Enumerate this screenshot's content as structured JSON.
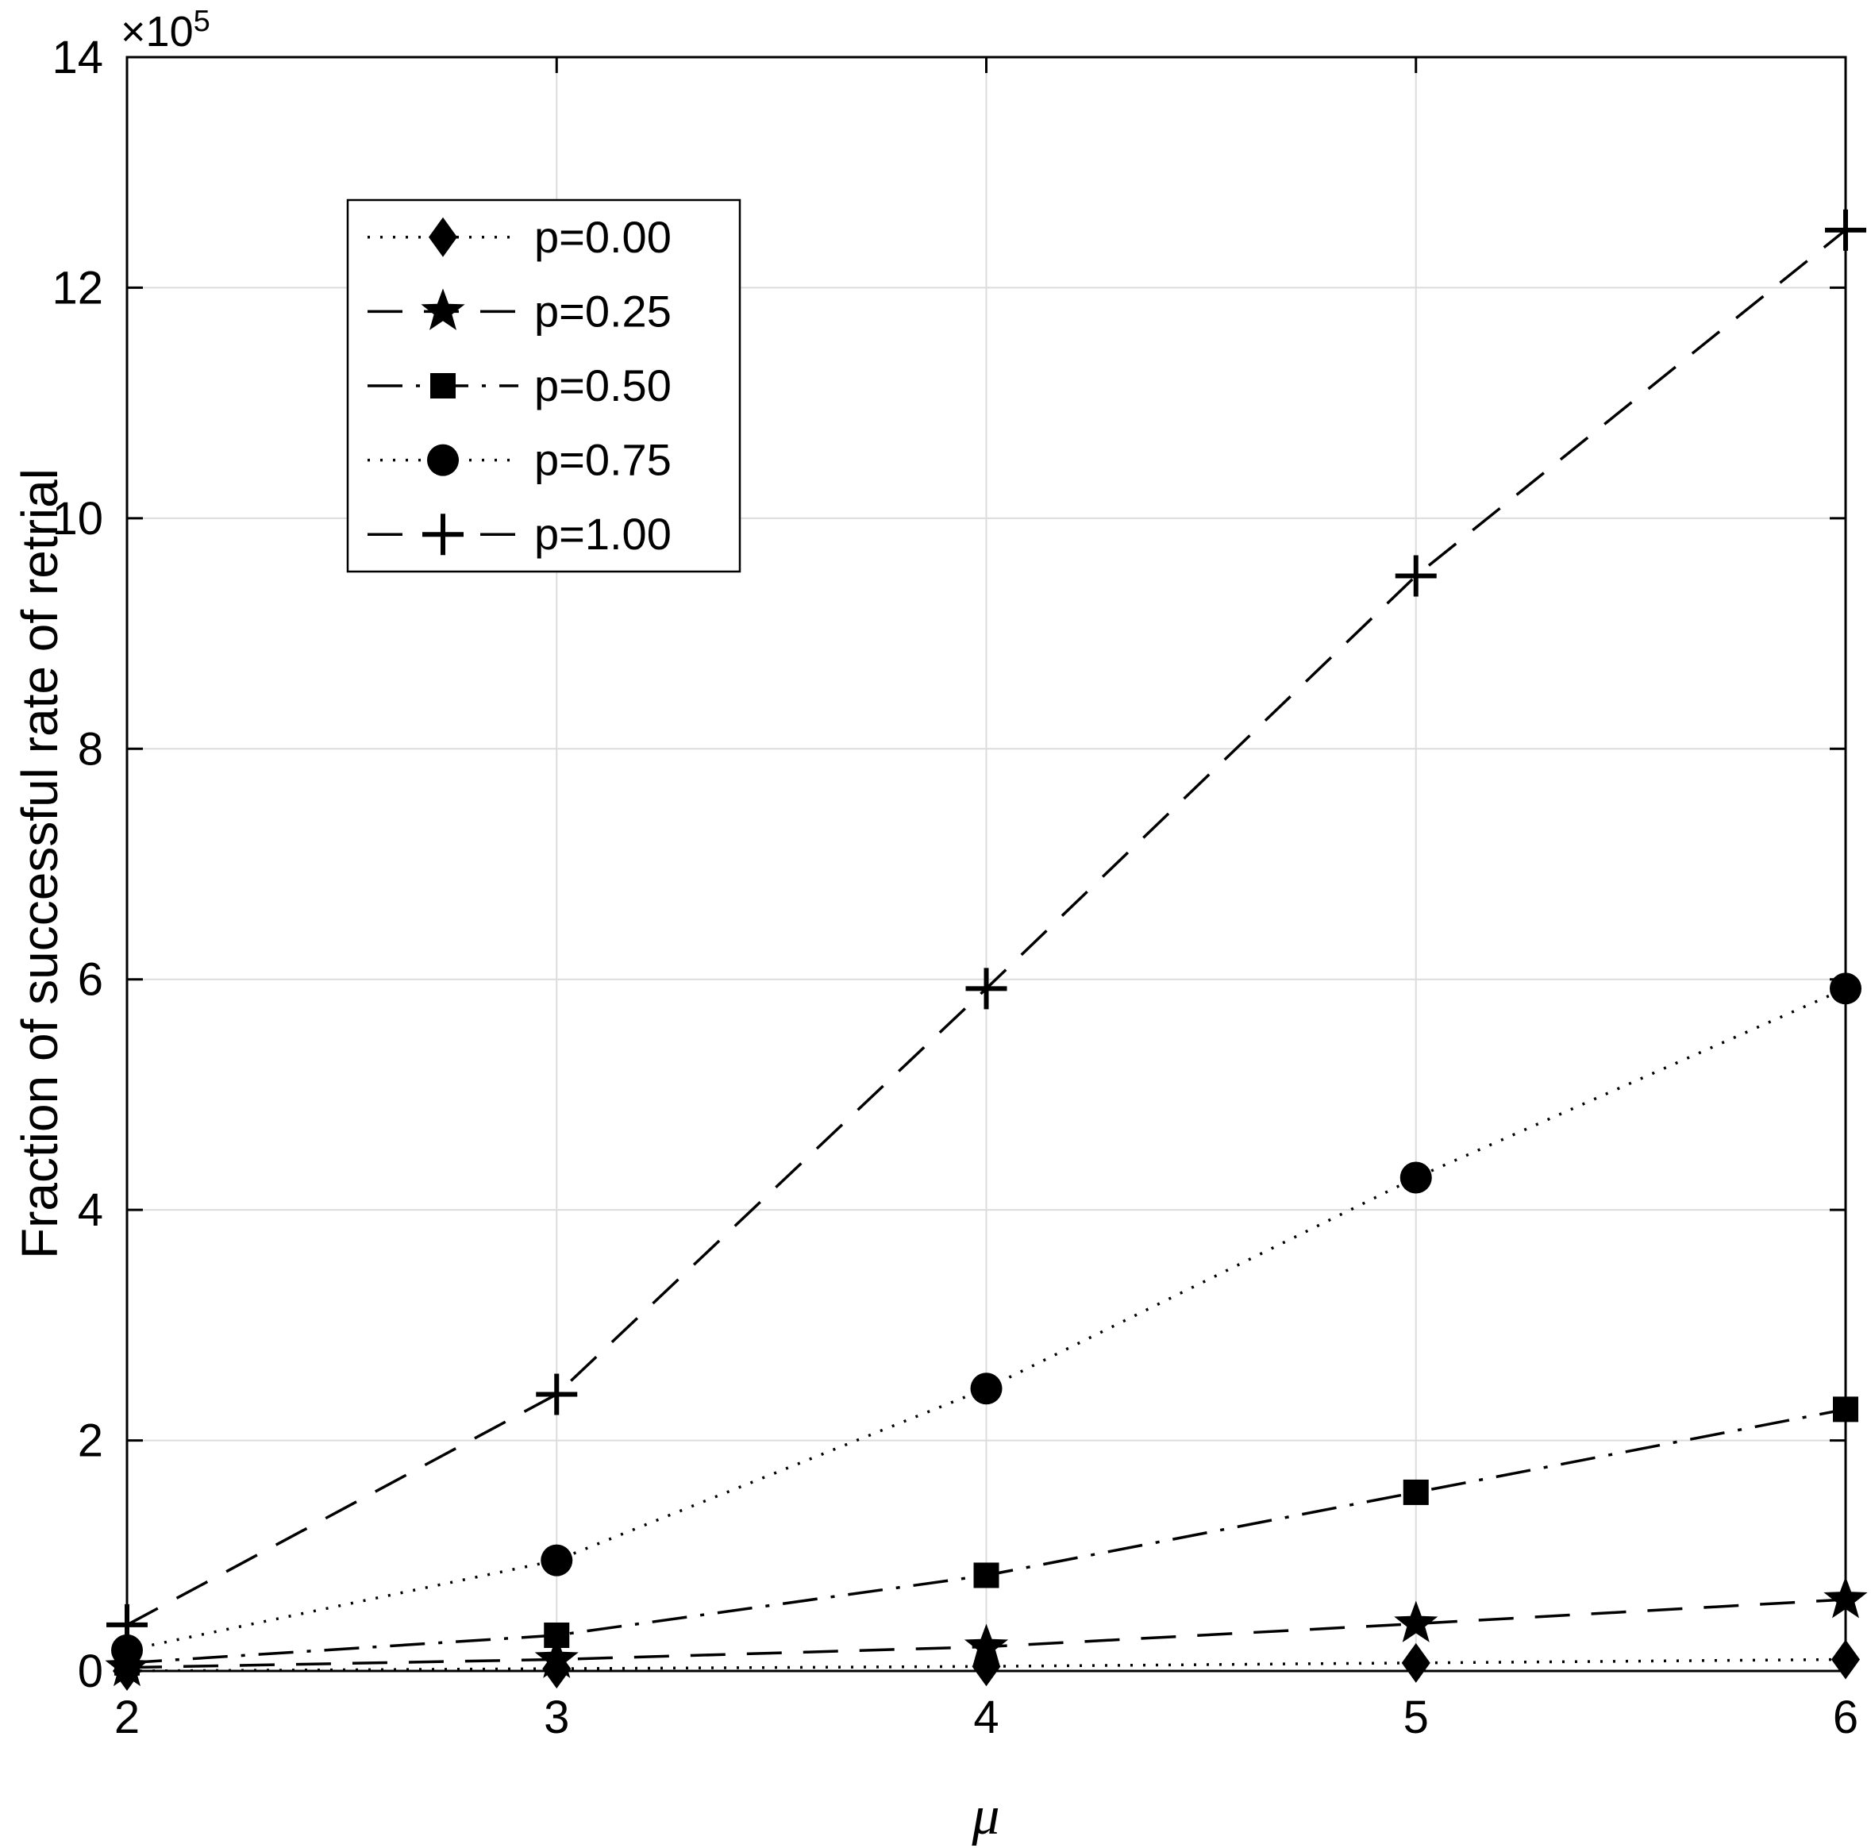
{
  "chart_data": {
    "type": "line",
    "title": "",
    "xlabel": "μ",
    "ylabel": "Fraction of successful rate of retrial",
    "y_unit": {
      "base": "×10",
      "exponent": "5"
    },
    "xlim": [
      2,
      6
    ],
    "ylim": [
      0,
      14
    ],
    "xticks": [
      2,
      3,
      4,
      5,
      6
    ],
    "yticks": [
      0,
      2,
      4,
      6,
      8,
      10,
      12,
      14
    ],
    "grid": true,
    "legend_position": "upper-left",
    "x": [
      2,
      3,
      4,
      5,
      6
    ],
    "series": [
      {
        "name": "p=0.00",
        "marker": "diamond",
        "dash": "dotted",
        "values": [
          0.0,
          0.02,
          0.04,
          0.07,
          0.1
        ]
      },
      {
        "name": "p=0.25",
        "marker": "star",
        "dash": "dashed",
        "values": [
          0.03,
          0.1,
          0.21,
          0.41,
          0.62
        ]
      },
      {
        "name": "p=0.50",
        "marker": "square",
        "dash": "dashdot",
        "values": [
          0.07,
          0.31,
          0.83,
          1.55,
          2.27
        ]
      },
      {
        "name": "p=0.75",
        "marker": "circle",
        "dash": "dotted",
        "values": [
          0.18,
          0.96,
          2.45,
          4.28,
          5.92
        ]
      },
      {
        "name": "p=1.00",
        "marker": "plus",
        "dash": "dashed",
        "values": [
          0.4,
          2.4,
          5.92,
          9.5,
          12.5
        ]
      }
    ],
    "colors": {
      "line": "#000000",
      "grid": "#dcdcdc",
      "axis": "#000000",
      "background": "#ffffff",
      "legend_background": "#ffffff"
    }
  }
}
